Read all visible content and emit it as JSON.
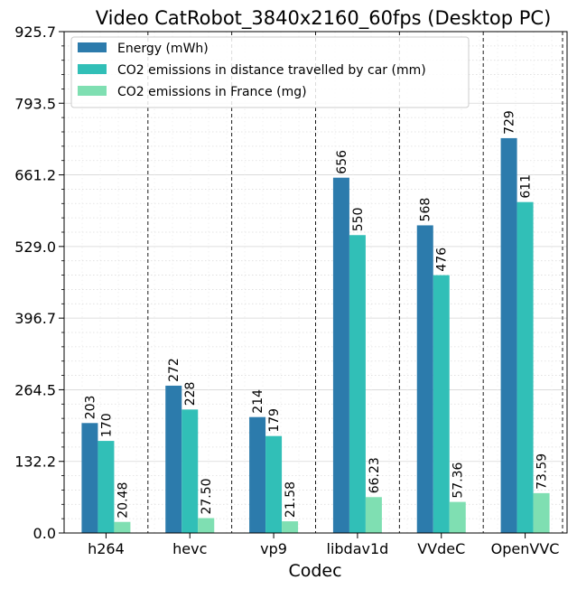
{
  "chart_data": {
    "type": "bar",
    "title": "Video CatRobot_3840x2160_60fps (Desktop PC)",
    "xlabel": "Codec",
    "ylabel": "",
    "categories": [
      "h264",
      "hevc",
      "vp9",
      "libdav1d",
      "VVdeC",
      "OpenVVC"
    ],
    "ylim": [
      0,
      925.7
    ],
    "yticks": [
      "0.0",
      "132.2",
      "264.5",
      "396.7",
      "529.0",
      "661.2",
      "793.5",
      "925.7"
    ],
    "grid": true,
    "legend_position": "top-left",
    "series": [
      {
        "name": "Energy (mWh)",
        "color": "#2c7bac",
        "values": [
          203,
          272,
          214,
          656,
          568,
          729
        ],
        "labels": [
          "203",
          "272",
          "214",
          "656",
          "568",
          "729"
        ]
      },
      {
        "name": "CO2 emissions in distance travelled by car (mm)",
        "color": "#31bfb7",
        "values": [
          170,
          228,
          179,
          550,
          476,
          611
        ],
        "labels": [
          "170",
          "228",
          "179",
          "550",
          "476",
          "611"
        ]
      },
      {
        "name": "CO2 emissions in France (mg)",
        "color": "#7fdfb2",
        "values": [
          20.48,
          27.5,
          21.58,
          66.23,
          57.36,
          73.59
        ],
        "labels": [
          "20.48",
          "27.50",
          "21.58",
          "66.23",
          "57.36",
          "73.59"
        ]
      }
    ]
  }
}
